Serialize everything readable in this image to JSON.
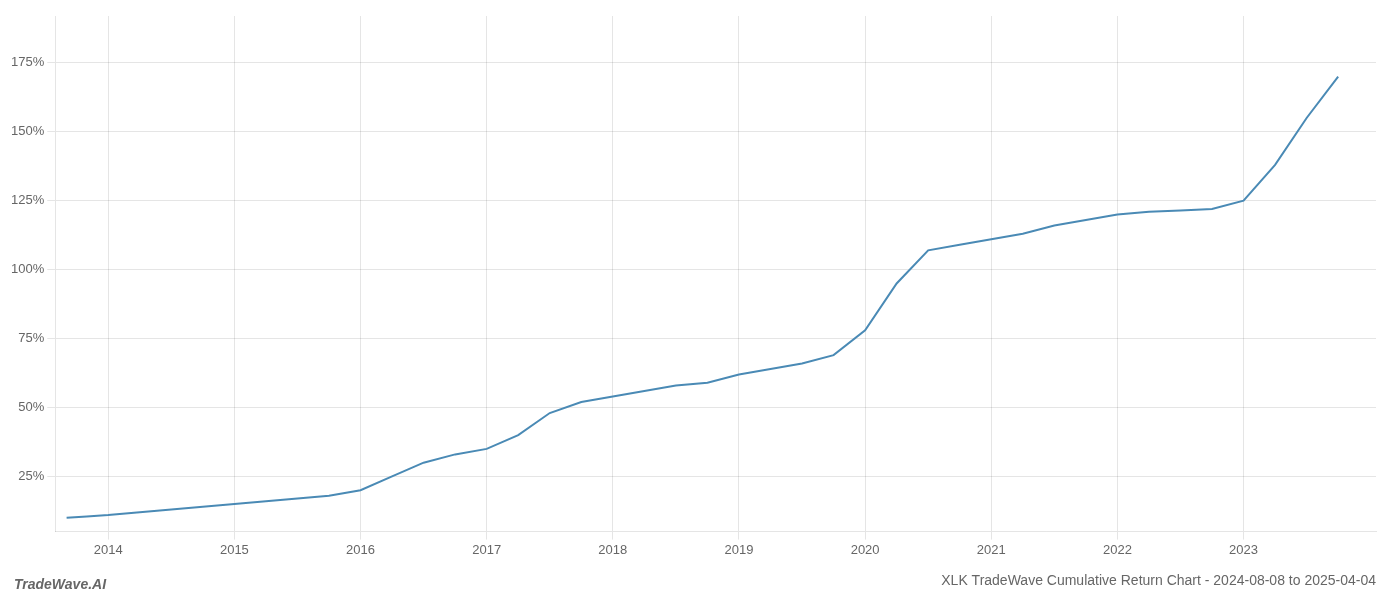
{
  "chart_data": {
    "type": "line",
    "title": "XLK TradeWave Cumulative Return Chart - 2024-08-08 to 2025-04-04",
    "annotations": [
      "TradeWave.AI"
    ],
    "x": [
      2013.67,
      2013.83,
      2014.0,
      2014.25,
      2014.5,
      2014.75,
      2015.0,
      2015.25,
      2015.5,
      2015.75,
      2016.0,
      2016.25,
      2016.5,
      2016.75,
      2017.0,
      2017.25,
      2017.5,
      2017.75,
      2018.0,
      2018.25,
      2018.5,
      2018.75,
      2019.0,
      2019.25,
      2019.5,
      2019.75,
      2020.0,
      2020.25,
      2020.5,
      2020.75,
      2021.0,
      2021.25,
      2021.5,
      2021.75,
      2022.0,
      2022.25,
      2022.5,
      2022.75,
      2023.0,
      2023.25,
      2023.5,
      2023.75
    ],
    "values": [
      10,
      10.5,
      11,
      12,
      13,
      14,
      15,
      16,
      17,
      18,
      20,
      25,
      30,
      33,
      35,
      40,
      48,
      52,
      54,
      56,
      58,
      59,
      62,
      64,
      66,
      69,
      78,
      95,
      107,
      109,
      111,
      113,
      116,
      118,
      120,
      121,
      121.5,
      122,
      125,
      138,
      155,
      170
    ],
    "color": "#4a8ab5",
    "xlim": [
      2013.58,
      2024.05
    ],
    "xticks": [
      2014,
      2015,
      2016,
      2017,
      2018,
      2019,
      2020,
      2021,
      2022,
      2023
    ],
    "ylim": [
      5,
      192
    ],
    "yticks": [
      {
        "value": 25,
        "label": "25%"
      },
      {
        "value": 50,
        "label": "50%"
      },
      {
        "value": 75,
        "label": "75%"
      },
      {
        "value": 100,
        "label": "100%"
      },
      {
        "value": 125,
        "label": "125%"
      },
      {
        "value": 150,
        "label": "150%"
      },
      {
        "value": 175,
        "label": "175%"
      }
    ],
    "grid": true
  }
}
